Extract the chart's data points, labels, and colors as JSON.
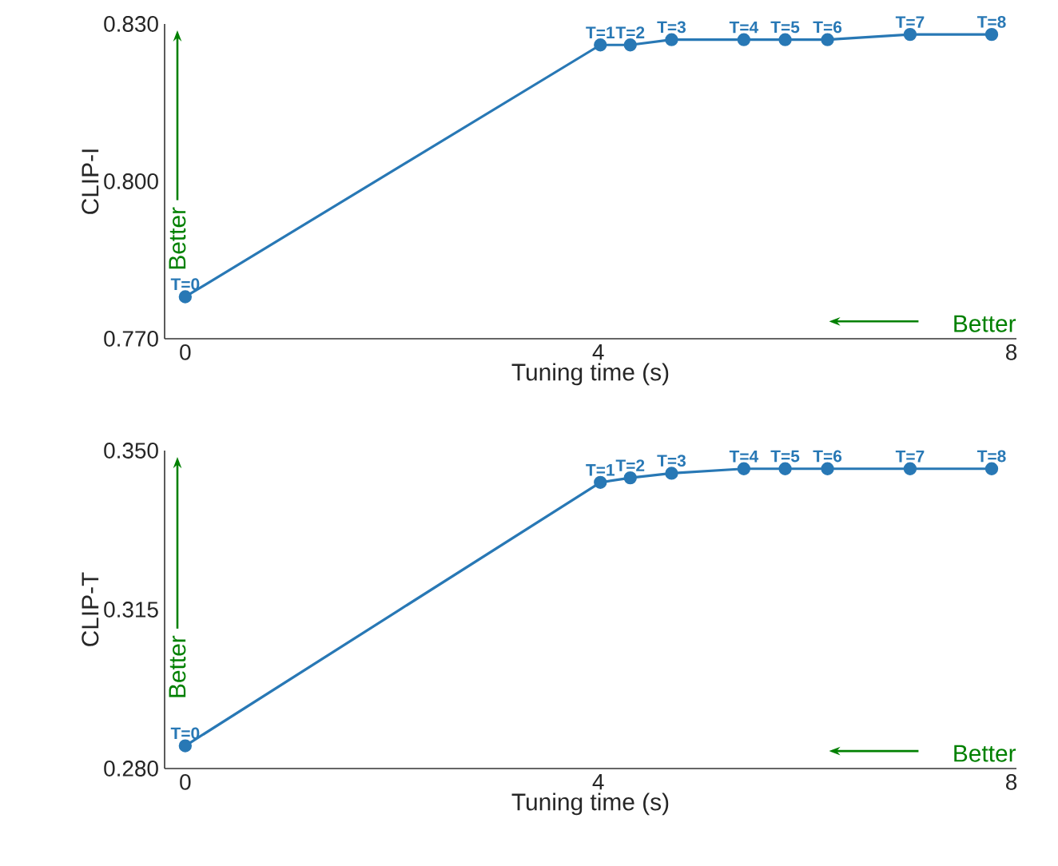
{
  "chart_data": [
    {
      "type": "line",
      "xlabel": "Tuning time (s)",
      "ylabel": "CLIP-I",
      "xlim": [
        -0.2,
        8.05
      ],
      "xticks": [
        0,
        4,
        8
      ],
      "ylim": [
        0.77,
        0.83
      ],
      "yticks": [
        {
          "value": 0.77,
          "label": "0.770"
        },
        {
          "value": 0.8,
          "label": "0.800"
        },
        {
          "value": 0.83,
          "label": "0.830"
        }
      ],
      "x": [
        0,
        4.02,
        4.31,
        4.71,
        5.41,
        5.81,
        6.22,
        7.02,
        7.81
      ],
      "marker": "circle",
      "line_style": "solid",
      "series": [
        {
          "color": "#2878b5",
          "values": [
            0.778,
            0.826,
            0.826,
            0.827,
            0.827,
            0.827,
            0.827,
            0.828,
            0.828
          ]
        }
      ],
      "annotations": [
        "Better",
        "Better",
        {
          "text": "T=0",
          "x": 0,
          "y": 0.778
        },
        {
          "text": "T=1",
          "x": 4.02,
          "y": 0.826
        },
        {
          "text": "T=2",
          "x": 4.31,
          "y": 0.826
        },
        {
          "text": "T=3",
          "x": 4.71,
          "y": 0.827
        },
        {
          "text": "T=4",
          "x": 5.41,
          "y": 0.827
        },
        {
          "text": "T=5",
          "x": 5.81,
          "y": 0.827
        },
        {
          "text": "T=6",
          "x": 6.22,
          "y": 0.827
        },
        {
          "text": "T=7",
          "x": 7.02,
          "y": 0.828
        },
        {
          "text": "T=8",
          "x": 7.81,
          "y": 0.828
        }
      ]
    },
    {
      "type": "line",
      "xlabel": "Tuning time (s)",
      "ylabel": "CLIP-T",
      "xlim": [
        -0.2,
        8.05
      ],
      "xticks": [
        0,
        4,
        8
      ],
      "ylim": [
        0.28,
        0.35
      ],
      "yticks": [
        {
          "value": 0.28,
          "label": "0.280"
        },
        {
          "value": 0.315,
          "label": "0.315"
        },
        {
          "value": 0.35,
          "label": "0.350"
        }
      ],
      "x": [
        0,
        4.02,
        4.31,
        4.71,
        5.41,
        5.81,
        6.22,
        7.02,
        7.81
      ],
      "marker": "circle",
      "line_style": "solid",
      "series": [
        {
          "color": "#2878b5",
          "values": [
            0.285,
            0.343,
            0.344,
            0.345,
            0.346,
            0.346,
            0.346,
            0.346,
            0.346
          ]
        }
      ],
      "annotations": [
        "Better",
        "Better",
        {
          "text": "T=0",
          "x": 0,
          "y": 0.285
        },
        {
          "text": "T=1",
          "x": 4.02,
          "y": 0.343
        },
        {
          "text": "T=2",
          "x": 4.31,
          "y": 0.344
        },
        {
          "text": "T=3",
          "x": 4.71,
          "y": 0.345
        },
        {
          "text": "T=4",
          "x": 5.41,
          "y": 0.346
        },
        {
          "text": "T=5",
          "x": 5.81,
          "y": 0.346
        },
        {
          "text": "T=6",
          "x": 6.22,
          "y": 0.346
        },
        {
          "text": "T=7",
          "x": 7.02,
          "y": 0.346
        },
        {
          "text": "T=8",
          "x": 7.81,
          "y": 0.346
        }
      ]
    }
  ]
}
